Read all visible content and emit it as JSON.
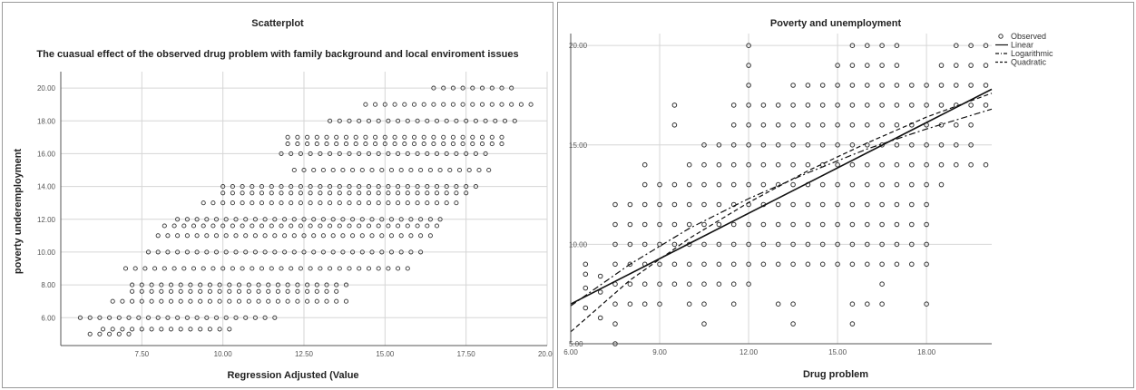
{
  "chart_data": [
    {
      "type": "scatter",
      "title": "Scatterplot",
      "subtitle": "The cuasual effect of the observed drug problem with family background and local enviroment issues",
      "xlabel": "Regression Adjusted (Value",
      "ylabel": "poverty underemployment",
      "xticks": [
        "7.50",
        "10.00",
        "12.50",
        "15.00",
        "17.50",
        "20.00"
      ],
      "yticks": [
        "6.00",
        "8.00",
        "10.00",
        "12.00",
        "14.00",
        "16.00",
        "18.00",
        "20.00"
      ],
      "xlim": [
        5.0,
        20.0
      ],
      "ylim": [
        4.3,
        21.0
      ],
      "grid": true,
      "bands": [
        {
          "y": 5,
          "x": [
            5.9,
            7.2
          ]
        },
        {
          "y": 5.3,
          "x": [
            6.3,
            10.3
          ]
        },
        {
          "y": 6,
          "x": [
            5.6,
            11.8
          ]
        },
        {
          "y": 7,
          "x": [
            6.6,
            13.8
          ]
        },
        {
          "y": 7.6,
          "x": [
            7.2,
            13.6
          ]
        },
        {
          "y": 8,
          "x": [
            7.2,
            13.9
          ]
        },
        {
          "y": 9,
          "x": [
            7.0,
            15.9
          ]
        },
        {
          "y": 10,
          "x": [
            7.7,
            16.2
          ]
        },
        {
          "y": 11,
          "x": [
            8.0,
            16.5
          ]
        },
        {
          "y": 11.6,
          "x": [
            8.2,
            16.8
          ]
        },
        {
          "y": 12,
          "x": [
            8.6,
            16.9
          ]
        },
        {
          "y": 13,
          "x": [
            9.4,
            17.4
          ]
        },
        {
          "y": 13.6,
          "x": [
            10.0,
            17.6
          ]
        },
        {
          "y": 14,
          "x": [
            10.0,
            17.8
          ]
        },
        {
          "y": 15,
          "x": [
            12.2,
            18.4
          ]
        },
        {
          "y": 16,
          "x": [
            11.8,
            18.3
          ]
        },
        {
          "y": 16.6,
          "x": [
            12.0,
            18.6
          ]
        },
        {
          "y": 17,
          "x": [
            12.0,
            18.7
          ]
        },
        {
          "y": 18,
          "x": [
            13.3,
            19.2
          ]
        },
        {
          "y": 19,
          "x": [
            14.4,
            19.6
          ]
        },
        {
          "y": 20,
          "x": [
            16.5,
            19.0
          ]
        }
      ]
    },
    {
      "type": "scatter",
      "title": "Poverty and unemployment",
      "xlabel": "Drug problem",
      "ylabel": "",
      "xticks": [
        "6.00",
        "9.00",
        "12.00",
        "15.00",
        "18.00"
      ],
      "yticks": [
        "5.00",
        "10.00",
        "15.00",
        "20.00"
      ],
      "xlim": [
        6.0,
        20.2
      ],
      "ylim": [
        5.0,
        20.6
      ],
      "grid": true,
      "legend_position": "top-right",
      "columns": [
        {
          "x": 6.5,
          "y": [
            6.8,
            7.8,
            8.5,
            9.0
          ]
        },
        {
          "x": 7,
          "y": [
            6.3,
            7.6,
            8.4
          ]
        },
        {
          "x": 7.5,
          "y": [
            5.0,
            6.0,
            7.0,
            8.0,
            9.0,
            10.0,
            11.0,
            12.0
          ]
        },
        {
          "x": 8,
          "y": [
            7.0,
            8.0,
            9.0,
            10.0,
            11.0,
            12.0
          ]
        },
        {
          "x": 8.5,
          "y": [
            7.0,
            8.0,
            9.0,
            10.0,
            11.0,
            12.0,
            13.0,
            14.0
          ]
        },
        {
          "x": 9,
          "y": [
            7.0,
            8.0,
            9.0,
            10.0,
            11.0,
            12.0,
            13.0
          ]
        },
        {
          "x": 9.5,
          "y": [
            8.0,
            9.0,
            10.0,
            11.0,
            12.0,
            13.0,
            16.0,
            17.0
          ]
        },
        {
          "x": 10,
          "y": [
            7.0,
            8.0,
            9.0,
            10.0,
            11.0,
            12.0,
            13.0,
            14.0
          ]
        },
        {
          "x": 10.5,
          "y": [
            6.0,
            7.0,
            8.0,
            9.0,
            10.0,
            11.0,
            12.0,
            13.0,
            14.0,
            15.0
          ]
        },
        {
          "x": 11,
          "y": [
            8.0,
            9.0,
            10.0,
            11.0,
            12.0,
            13.0,
            14.0,
            15.0
          ]
        },
        {
          "x": 11.5,
          "y": [
            7.0,
            8.0,
            9.0,
            10.0,
            11.0,
            12.0,
            13.0,
            14.0,
            15.0,
            16.0,
            17.0
          ]
        },
        {
          "x": 12,
          "y": [
            8.0,
            9.0,
            10.0,
            11.0,
            12.0,
            13.0,
            14.0,
            15.0,
            16.0,
            17.0,
            18.0,
            19.0,
            20.0
          ]
        },
        {
          "x": 12.5,
          "y": [
            9.0,
            10.0,
            11.0,
            12.0,
            13.0,
            14.0,
            15.0,
            16.0,
            17.0
          ]
        },
        {
          "x": 13,
          "y": [
            7.0,
            9.0,
            10.0,
            11.0,
            12.0,
            13.0,
            14.0,
            15.0,
            16.0,
            17.0
          ]
        },
        {
          "x": 13.5,
          "y": [
            6.0,
            7.0,
            9.0,
            10.0,
            11.0,
            12.0,
            13.0,
            14.0,
            15.0,
            16.0,
            17.0,
            18.0
          ]
        },
        {
          "x": 14,
          "y": [
            9.0,
            10.0,
            11.0,
            12.0,
            13.0,
            14.0,
            15.0,
            16.0,
            17.0,
            18.0
          ]
        },
        {
          "x": 14.5,
          "y": [
            9.0,
            10.0,
            11.0,
            12.0,
            13.0,
            14.0,
            15.0,
            16.0,
            17.0,
            18.0
          ]
        },
        {
          "x": 15,
          "y": [
            9.0,
            10.0,
            11.0,
            12.0,
            13.0,
            14.0,
            15.0,
            16.0,
            17.0,
            18.0,
            19.0
          ]
        },
        {
          "x": 15.5,
          "y": [
            6.0,
            7.0,
            9.0,
            10.0,
            11.0,
            12.0,
            13.0,
            14.0,
            15.0,
            16.0,
            17.0,
            18.0,
            19.0,
            20.0
          ]
        },
        {
          "x": 16,
          "y": [
            7.0,
            9.0,
            10.0,
            11.0,
            12.0,
            13.0,
            14.0,
            15.0,
            16.0,
            17.0,
            18.0,
            19.0,
            20.0
          ]
        },
        {
          "x": 16.5,
          "y": [
            7.0,
            8.0,
            9.0,
            10.0,
            11.0,
            12.0,
            13.0,
            14.0,
            15.0,
            16.0,
            17.0,
            18.0,
            19.0,
            20.0
          ]
        },
        {
          "x": 17,
          "y": [
            9.0,
            10.0,
            11.0,
            12.0,
            13.0,
            14.0,
            15.0,
            16.0,
            17.0,
            18.0,
            19.0,
            20.0
          ]
        },
        {
          "x": 17.5,
          "y": [
            9.0,
            10.0,
            11.0,
            12.0,
            13.0,
            14.0,
            15.0,
            16.0,
            17.0,
            18.0
          ]
        },
        {
          "x": 18,
          "y": [
            7.0,
            9.0,
            10.0,
            11.0,
            12.0,
            13.0,
            14.0,
            15.0,
            16.0,
            17.0,
            18.0
          ]
        },
        {
          "x": 18.5,
          "y": [
            13.0,
            14.0,
            15.0,
            16.0,
            17.0,
            18.0,
            19.0
          ]
        },
        {
          "x": 19,
          "y": [
            14.0,
            15.0,
            16.0,
            17.0,
            18.0,
            19.0,
            20.0
          ]
        },
        {
          "x": 19.5,
          "y": [
            14.0,
            15.0,
            16.0,
            17.0,
            18.0,
            19.0,
            20.0
          ]
        },
        {
          "x": 20,
          "y": [
            14.0,
            17.0,
            18.0,
            19.0,
            20.0
          ]
        }
      ],
      "series": [
        {
          "name": "Observed",
          "kind": "points"
        },
        {
          "name": "Linear",
          "kind": "line",
          "style": "solid",
          "x": [
            6.0,
            20.2
          ],
          "y": [
            7.0,
            17.8
          ]
        },
        {
          "name": "Logarithmic",
          "kind": "line",
          "style": "dash-dot",
          "x": [
            6.0,
            8.0,
            10.0,
            12.0,
            14.0,
            16.0,
            18.0,
            20.2
          ],
          "y": [
            6.9,
            9.0,
            10.8,
            12.3,
            13.6,
            14.8,
            15.8,
            16.8
          ]
        },
        {
          "name": "Quadratic",
          "kind": "line",
          "style": "dashed",
          "x": [
            6.0,
            8.0,
            10.0,
            12.0,
            14.0,
            16.0,
            18.0,
            20.2
          ],
          "y": [
            5.6,
            8.2,
            10.3,
            12.1,
            13.7,
            15.1,
            16.4,
            17.6
          ]
        }
      ]
    }
  ]
}
